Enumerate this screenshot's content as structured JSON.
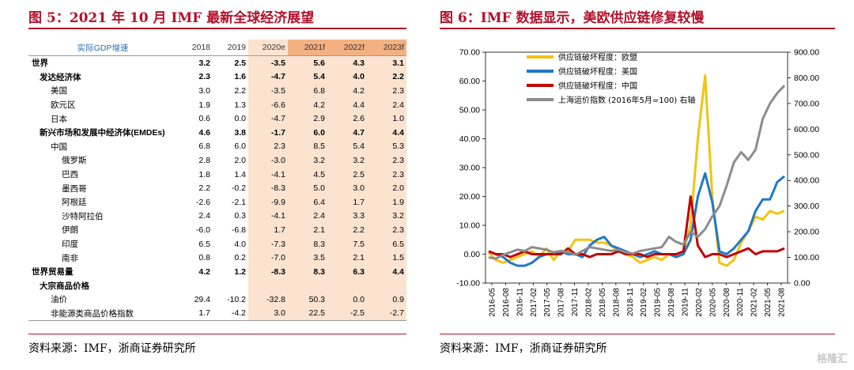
{
  "left_panel": {
    "title": "图 5：2021 年 10 月 IMF 最新全球经济展望",
    "source": "资料来源：IMF，浙商证券研究所"
  },
  "right_panel": {
    "title": "图 6：IMF 数据显示，美欧供应链修复较慢",
    "source": "资料来源：IMF，浙商证券研究所"
  },
  "watermark": "格隆汇",
  "colors": {
    "accent": "#b3112a",
    "forecast_bg": "#fbe3cf",
    "forecast_head": "#f4b183",
    "eu": "#f5c211",
    "us": "#1f78c8",
    "cn": "#c00000",
    "shanghai": "#8c8c8c"
  },
  "chart_data": [
    {
      "type": "table",
      "header_label": "实际GDP增速",
      "columns": [
        "2018",
        "2019",
        "2020e",
        "2021f",
        "2022f",
        "2023f"
      ],
      "rows": [
        {
          "label": "世界",
          "level": 0,
          "bold": true,
          "values": [
            "3.2",
            "2.5",
            "-3.5",
            "5.6",
            "4.3",
            "3.1"
          ]
        },
        {
          "label": "发达经济体",
          "level": 1,
          "bold": true,
          "values": [
            "2.3",
            "1.6",
            "-4.7",
            "5.4",
            "4.0",
            "2.2"
          ]
        },
        {
          "label": "美国",
          "level": 2,
          "bold": false,
          "values": [
            "3.0",
            "2.2",
            "-3.5",
            "6.8",
            "4.2",
            "2.3"
          ]
        },
        {
          "label": "欧元区",
          "level": 2,
          "bold": false,
          "values": [
            "1.9",
            "1.3",
            "-6.6",
            "4.2",
            "4.4",
            "2.4"
          ]
        },
        {
          "label": "日本",
          "level": 2,
          "bold": false,
          "values": [
            "0.6",
            "0.0",
            "-4.7",
            "2.9",
            "2.6",
            "1.0"
          ]
        },
        {
          "label": "新兴市场和发展中经济体(EMDEs)",
          "level": 1,
          "bold": true,
          "values": [
            "4.6",
            "3.8",
            "-1.7",
            "6.0",
            "4.7",
            "4.4"
          ]
        },
        {
          "label": "中国",
          "level": 2,
          "bold": false,
          "values": [
            "6.8",
            "6.0",
            "2.3",
            "8.5",
            "5.4",
            "5.3"
          ]
        },
        {
          "label": "俄罗斯",
          "level": 3,
          "bold": false,
          "values": [
            "2.8",
            "2.0",
            "-3.0",
            "3.2",
            "3.2",
            "2.3"
          ]
        },
        {
          "label": "巴西",
          "level": 3,
          "bold": false,
          "values": [
            "1.8",
            "1.4",
            "-4.1",
            "4.5",
            "2.5",
            "2.3"
          ]
        },
        {
          "label": "墨西哥",
          "level": 3,
          "bold": false,
          "values": [
            "2.2",
            "-0.2",
            "-8.3",
            "5.0",
            "3.0",
            "2.0"
          ]
        },
        {
          "label": "阿根廷",
          "level": 3,
          "bold": false,
          "values": [
            "-2.6",
            "-2.1",
            "-9.9",
            "6.4",
            "1.7",
            "1.9"
          ]
        },
        {
          "label": "沙特阿拉伯",
          "level": 3,
          "bold": false,
          "values": [
            "2.4",
            "0.3",
            "-4.1",
            "2.4",
            "3.3",
            "3.2"
          ]
        },
        {
          "label": "伊朗",
          "level": 3,
          "bold": false,
          "values": [
            "-6.0",
            "-6.8",
            "1.7",
            "2.1",
            "2.2",
            "2.3"
          ]
        },
        {
          "label": "印度",
          "level": 3,
          "bold": false,
          "values": [
            "6.5",
            "4.0",
            "-7.3",
            "8.3",
            "7.5",
            "6.5"
          ]
        },
        {
          "label": "南非",
          "level": 3,
          "bold": false,
          "values": [
            "0.8",
            "0.2",
            "-7.0",
            "3.5",
            "2.1",
            "1.5"
          ]
        },
        {
          "label": "世界贸易量",
          "level": 0,
          "bold": true,
          "values": [
            "4.2",
            "1.2",
            "-8.3",
            "8.3",
            "6.3",
            "4.4"
          ]
        },
        {
          "label": "大宗商品价格",
          "level": 1,
          "bold": true,
          "values": [
            "",
            "",
            "",
            "",
            "",
            ""
          ]
        },
        {
          "label": "油价",
          "level": 2,
          "bold": false,
          "values": [
            "29.4",
            "-10.2",
            "-32.8",
            "50.3",
            "0.0",
            "0.9"
          ]
        },
        {
          "label": "非能源类商品价格指数",
          "level": 2,
          "bold": false,
          "values": [
            "1.7",
            "-4.2",
            "3.0",
            "22.5",
            "-2.5",
            "-2.7"
          ]
        }
      ]
    },
    {
      "type": "line",
      "x_labels": [
        "2016-05",
        "2016-08",
        "2016-11",
        "2017-02",
        "2017-05",
        "2017-08",
        "2017-11",
        "2018-02",
        "2018-05",
        "2018-08",
        "2018-11",
        "2019-02",
        "2019-05",
        "2019-08",
        "2019-11",
        "2020-02",
        "2020-05",
        "2020-08",
        "2020-11",
        "2021-02",
        "2021-05",
        "2021-08"
      ],
      "y_left_ticks": [
        "70.00",
        "60.00",
        "50.00",
        "40.00",
        "30.00",
        "20.00",
        "10.00",
        "0.00",
        "-10.00"
      ],
      "y_right_ticks": [
        "900.00",
        "800.00",
        "700.00",
        "600.00",
        "500.00",
        "400.00",
        "300.00",
        "200.00",
        "100.00",
        "0.00"
      ],
      "y_left_range": [
        -10,
        70
      ],
      "y_right_range": [
        0,
        900
      ],
      "legend_position": "top-left",
      "series": [
        {
          "name": "供应链破坏程度：欧盟",
          "axis": "left",
          "color_key": "eu",
          "values": [
            0.5,
            -2,
            -3,
            -2,
            -1,
            0,
            1,
            -1,
            2,
            -2,
            1,
            1,
            5,
            5,
            5,
            4,
            4,
            3,
            1,
            0,
            -1,
            -3,
            -2,
            -1,
            -2,
            0,
            -1,
            1,
            10,
            40,
            62,
            20,
            -3,
            -4,
            -2,
            4,
            8,
            13,
            12,
            15,
            14,
            15
          ]
        },
        {
          "name": "供应链破坏程度：美国",
          "axis": "left",
          "color_key": "us",
          "values": [
            1,
            0,
            -1,
            -3,
            -4,
            -4,
            -3,
            -1,
            0,
            0,
            1,
            0,
            0,
            -1,
            3,
            5,
            6,
            3,
            2,
            1,
            0,
            -1,
            0,
            1,
            0,
            0,
            -1,
            0,
            5,
            20,
            28,
            18,
            1,
            0,
            2,
            5,
            8,
            15,
            19,
            19,
            25,
            27
          ]
        },
        {
          "name": "供应链破坏程度：中国",
          "axis": "left",
          "color_key": "cn",
          "values": [
            1,
            0,
            0,
            -1,
            0,
            1,
            0,
            0,
            0,
            0,
            0,
            2,
            0,
            0,
            -1,
            0,
            0,
            0,
            1,
            0,
            0,
            0,
            -1,
            0,
            0,
            0,
            0,
            1,
            20,
            3,
            -1,
            0,
            0,
            -1,
            0,
            1,
            2,
            0,
            1,
            1,
            1,
            2
          ]
        },
        {
          "name": "上海运价指数  (2016年5月=100)  右轴",
          "axis": "right",
          "color_key": "shanghai",
          "values": [
            100,
            95,
            110,
            120,
            130,
            125,
            140,
            135,
            130,
            120,
            125,
            120,
            110,
            125,
            140,
            135,
            130,
            125,
            130,
            120,
            115,
            125,
            130,
            135,
            140,
            180,
            160,
            150,
            200,
            180,
            210,
            260,
            300,
            380,
            470,
            510,
            480,
            520,
            640,
            700,
            740,
            770
          ]
        }
      ]
    }
  ]
}
